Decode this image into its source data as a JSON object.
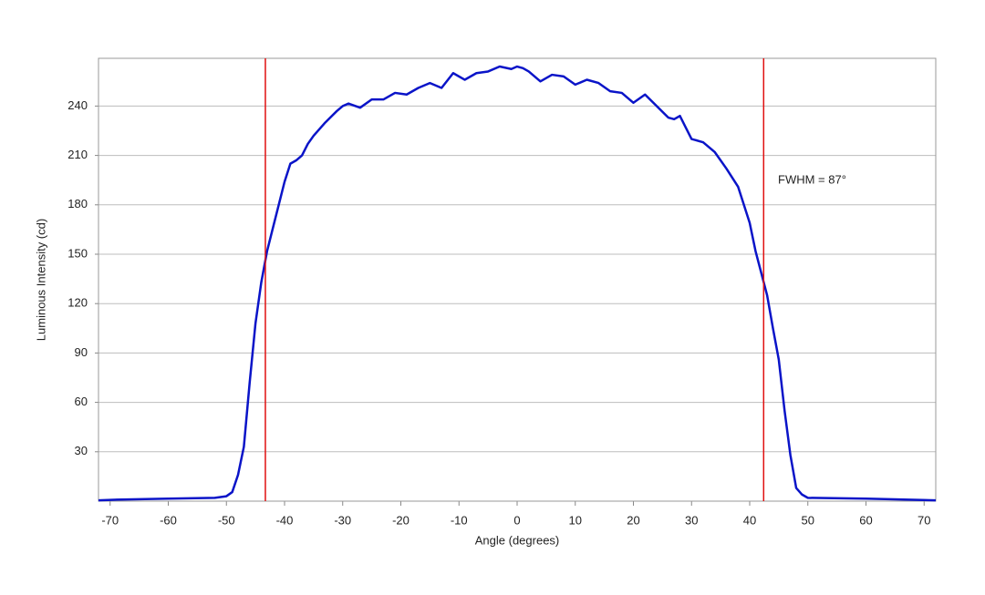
{
  "chart_data": {
    "type": "line",
    "x_label": "Angle (degrees)",
    "y_label": "Luminous Intensity (cd)",
    "annotation": "FWHM = 87°",
    "x": [
      -72,
      -68,
      -60,
      -52,
      -50,
      -49,
      -48,
      -47,
      -46,
      -45,
      -44,
      -43,
      -42,
      -41,
      -40,
      -39,
      -38,
      -37,
      -36,
      -35,
      -33,
      -31,
      -30,
      -29,
      -27,
      -25,
      -23,
      -21,
      -19,
      -17,
      -15,
      -13,
      -11,
      -9,
      -7,
      -5,
      -3,
      -1,
      0,
      1,
      2,
      4,
      6,
      8,
      10,
      12,
      14,
      16,
      18,
      20,
      22,
      24,
      26,
      27,
      28,
      29,
      30,
      32,
      34,
      36,
      38,
      39,
      40,
      41,
      42,
      43,
      44,
      45,
      46,
      47,
      48,
      49,
      50,
      60,
      72
    ],
    "series": [
      {
        "name": "Luminous Intensity",
        "color": "#0a14c8",
        "values": [
          0.5,
          1,
          1.5,
          2,
          3,
          5.5,
          16,
          33,
          72,
          108,
          133,
          152,
          166,
          180,
          194,
          205,
          207,
          210,
          217,
          222,
          230,
          237,
          240,
          241.5,
          239,
          244,
          244,
          248,
          247,
          251,
          254,
          251,
          260,
          256,
          260,
          261,
          264,
          262.5,
          264,
          263,
          261,
          255,
          259,
          258,
          253,
          256,
          254,
          249,
          248,
          242,
          247,
          240,
          233,
          232,
          234,
          227,
          220,
          218,
          212,
          202,
          191,
          180,
          169,
          152,
          138.5,
          125,
          105,
          86,
          55,
          28,
          8,
          4,
          2,
          1.5,
          0.5
        ]
      }
    ],
    "vlines": [
      -43.3,
      42.4
    ],
    "vline_color": "#e01010",
    "xlim": [
      -72,
      72
    ],
    "ylim": [
      0,
      269
    ],
    "xticks": [
      -70,
      -60,
      -50,
      -40,
      -30,
      -20,
      -10,
      0,
      10,
      20,
      30,
      40,
      50,
      60,
      70
    ],
    "yticks": [
      30,
      60,
      90,
      120,
      150,
      180,
      210,
      240
    ],
    "grid": true
  }
}
